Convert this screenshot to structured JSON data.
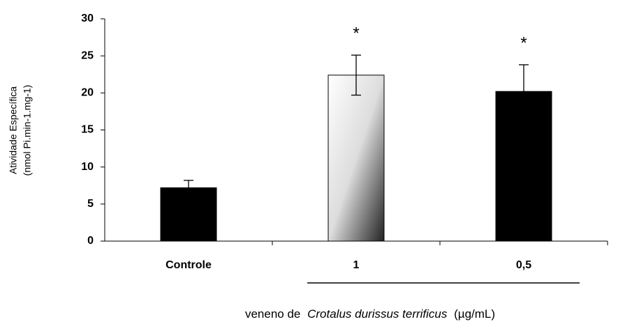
{
  "chart_data": {
    "type": "bar",
    "ylabel": [
      "Atividade Específica",
      "(nmol Pi.min-1.mg-1)"
    ],
    "xlabel": {
      "prefix": "veneno de",
      "italic": "Crotalus durissus terrificus",
      "suffix": "(µg/mL)"
    },
    "categories": [
      "Controle",
      "1",
      "0,5"
    ],
    "values": [
      7.2,
      22.4,
      20.2
    ],
    "errors": [
      1.0,
      2.7,
      3.6
    ],
    "annotations": [
      null,
      "*",
      "*"
    ],
    "colors": [
      "#000000",
      "gradient",
      "#000000"
    ],
    "ylim": [
      0,
      30
    ],
    "yticks": [
      0,
      5,
      10,
      15,
      20,
      25,
      30
    ]
  }
}
